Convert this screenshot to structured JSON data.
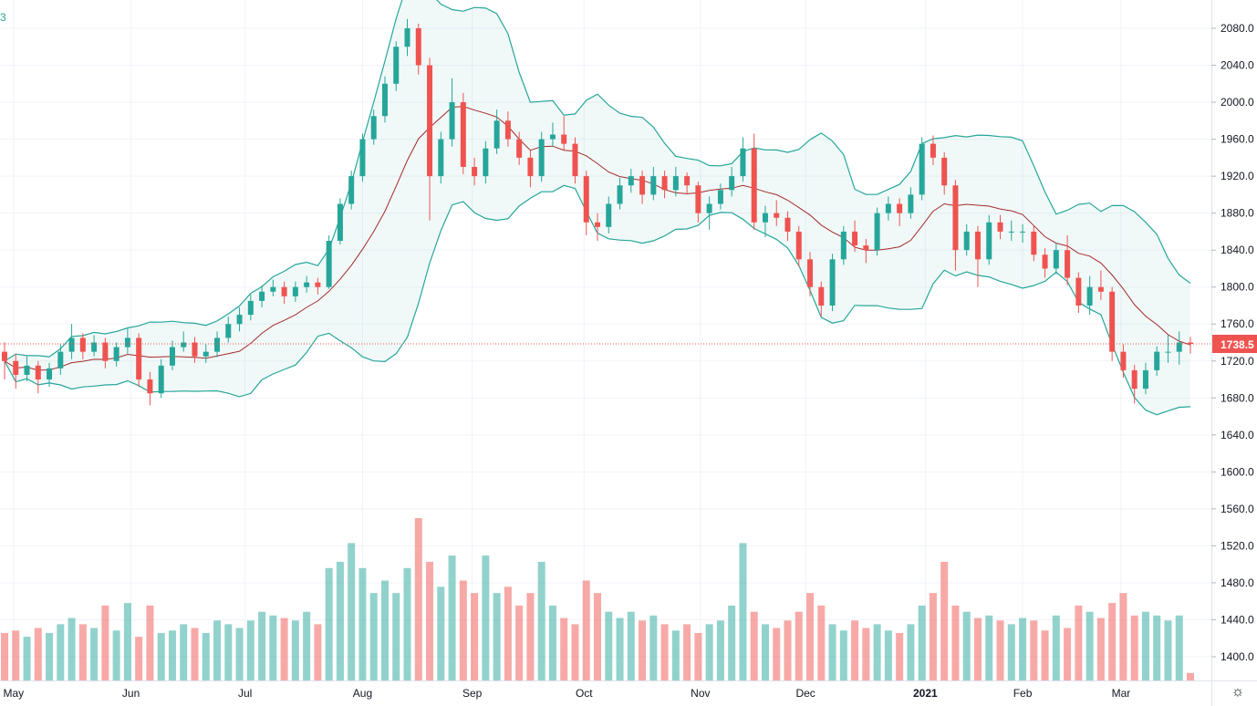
{
  "chart_data": {
    "type": "candlestick",
    "title": "",
    "legend_fragment": "3",
    "y_ticks": [
      "1400.0",
      "1440.0",
      "1480.0",
      "1520.0",
      "1560.0",
      "1600.0",
      "1640.0",
      "1680.0",
      "1720.0",
      "1760.0",
      "1800.0",
      "1840.0",
      "1880.0",
      "1920.0",
      "1960.0",
      "2000.0",
      "2040.0",
      "2080.0"
    ],
    "ylim": [
      1380,
      2100
    ],
    "x_ticks": [
      "May",
      "Jun",
      "Jul",
      "Aug",
      "Sep",
      "Oct",
      "Nov",
      "Dec",
      "2021",
      "Feb",
      "Mar"
    ],
    "last_price": "1738.5",
    "grid": true,
    "indicators": [
      "Bollinger Bands",
      "Volume"
    ],
    "colors": {
      "up": "#26a69a",
      "down": "#ef5350",
      "band": "#26a69a",
      "basis": "#a52a2a",
      "band_fill": "#26a69a",
      "grid": "#f0f3fa"
    },
    "candles": [
      [
        1730,
        1740,
        1700,
        1720
      ],
      [
        1720,
        1728,
        1690,
        1705
      ],
      [
        1705,
        1725,
        1698,
        1715
      ],
      [
        1715,
        1720,
        1685,
        1700
      ],
      [
        1700,
        1718,
        1692,
        1712
      ],
      [
        1712,
        1738,
        1705,
        1730
      ],
      [
        1730,
        1760,
        1722,
        1745
      ],
      [
        1745,
        1750,
        1722,
        1730
      ],
      [
        1730,
        1748,
        1725,
        1740
      ],
      [
        1740,
        1745,
        1712,
        1720
      ],
      [
        1720,
        1740,
        1714,
        1735
      ],
      [
        1735,
        1755,
        1728,
        1745
      ],
      [
        1745,
        1750,
        1692,
        1700
      ],
      [
        1700,
        1708,
        1672,
        1685
      ],
      [
        1685,
        1722,
        1680,
        1715
      ],
      [
        1715,
        1742,
        1710,
        1735
      ],
      [
        1735,
        1752,
        1730,
        1740
      ],
      [
        1740,
        1746,
        1718,
        1725
      ],
      [
        1725,
        1738,
        1718,
        1730
      ],
      [
        1730,
        1752,
        1724,
        1745
      ],
      [
        1745,
        1768,
        1740,
        1760
      ],
      [
        1760,
        1778,
        1752,
        1770
      ],
      [
        1770,
        1792,
        1764,
        1785
      ],
      [
        1785,
        1802,
        1778,
        1795
      ],
      [
        1795,
        1808,
        1790,
        1800
      ],
      [
        1800,
        1806,
        1782,
        1790
      ],
      [
        1790,
        1806,
        1784,
        1800
      ],
      [
        1800,
        1812,
        1794,
        1805
      ],
      [
        1805,
        1810,
        1792,
        1800
      ],
      [
        1800,
        1856,
        1798,
        1850
      ],
      [
        1850,
        1896,
        1846,
        1890
      ],
      [
        1890,
        1926,
        1884,
        1920
      ],
      [
        1920,
        1966,
        1914,
        1960
      ],
      [
        1960,
        1992,
        1954,
        1985
      ],
      [
        1985,
        2028,
        1978,
        2020
      ],
      [
        2020,
        2066,
        2012,
        2060
      ],
      [
        2060,
        2090,
        2050,
        2080
      ],
      [
        2080,
        2085,
        2030,
        2040
      ],
      [
        2040,
        2048,
        1872,
        1920
      ],
      [
        1920,
        1968,
        1912,
        1960
      ],
      [
        1960,
        2026,
        1952,
        2000
      ],
      [
        2000,
        2010,
        1922,
        1930
      ],
      [
        1930,
        1940,
        1910,
        1920
      ],
      [
        1920,
        1958,
        1912,
        1950
      ],
      [
        1950,
        1992,
        1944,
        1980
      ],
      [
        1980,
        1990,
        1952,
        1960
      ],
      [
        1960,
        1968,
        1932,
        1940
      ],
      [
        1940,
        1948,
        1908,
        1920
      ],
      [
        1920,
        1968,
        1914,
        1960
      ],
      [
        1960,
        1978,
        1952,
        1965
      ],
      [
        1965,
        1985,
        1948,
        1955
      ],
      [
        1955,
        1962,
        1912,
        1920
      ],
      [
        1920,
        1926,
        1856,
        1870
      ],
      [
        1870,
        1880,
        1850,
        1865
      ],
      [
        1865,
        1898,
        1858,
        1890
      ],
      [
        1890,
        1918,
        1884,
        1910
      ],
      [
        1910,
        1928,
        1902,
        1920
      ],
      [
        1920,
        1926,
        1890,
        1900
      ],
      [
        1900,
        1930,
        1894,
        1920
      ],
      [
        1920,
        1926,
        1896,
        1905
      ],
      [
        1905,
        1930,
        1898,
        1920
      ],
      [
        1920,
        1924,
        1900,
        1910
      ],
      [
        1910,
        1914,
        1870,
        1880
      ],
      [
        1880,
        1898,
        1862,
        1890
      ],
      [
        1890,
        1912,
        1884,
        1905
      ],
      [
        1905,
        1930,
        1898,
        1920
      ],
      [
        1920,
        1962,
        1914,
        1950
      ],
      [
        1950,
        1966,
        1862,
        1870
      ],
      [
        1870,
        1888,
        1854,
        1880
      ],
      [
        1880,
        1894,
        1866,
        1875
      ],
      [
        1875,
        1882,
        1850,
        1860
      ],
      [
        1860,
        1866,
        1822,
        1830
      ],
      [
        1830,
        1838,
        1790,
        1800
      ],
      [
        1800,
        1806,
        1768,
        1780
      ],
      [
        1780,
        1836,
        1774,
        1830
      ],
      [
        1830,
        1866,
        1824,
        1860
      ],
      [
        1860,
        1872,
        1838,
        1845
      ],
      [
        1845,
        1852,
        1826,
        1840
      ],
      [
        1840,
        1886,
        1834,
        1880
      ],
      [
        1880,
        1898,
        1872,
        1890
      ],
      [
        1890,
        1896,
        1866,
        1880
      ],
      [
        1880,
        1908,
        1874,
        1900
      ],
      [
        1900,
        1962,
        1894,
        1955
      ],
      [
        1955,
        1964,
        1932,
        1940
      ],
      [
        1940,
        1946,
        1900,
        1910
      ],
      [
        1910,
        1916,
        1818,
        1840
      ],
      [
        1840,
        1868,
        1834,
        1860
      ],
      [
        1860,
        1866,
        1800,
        1830
      ],
      [
        1830,
        1878,
        1824,
        1870
      ],
      [
        1870,
        1878,
        1852,
        1860
      ],
      [
        1860,
        1872,
        1850,
        1860
      ],
      [
        1860,
        1868,
        1848,
        1860
      ],
      [
        1860,
        1866,
        1828,
        1835
      ],
      [
        1835,
        1842,
        1810,
        1820
      ],
      [
        1820,
        1848,
        1814,
        1840
      ],
      [
        1840,
        1856,
        1802,
        1810
      ],
      [
        1810,
        1816,
        1772,
        1780
      ],
      [
        1780,
        1812,
        1770,
        1800
      ],
      [
        1800,
        1818,
        1786,
        1795
      ],
      [
        1795,
        1800,
        1720,
        1730
      ],
      [
        1730,
        1738,
        1702,
        1710
      ],
      [
        1710,
        1716,
        1674,
        1690
      ],
      [
        1690,
        1718,
        1684,
        1710
      ],
      [
        1710,
        1736,
        1704,
        1730
      ],
      [
        1730,
        1748,
        1718,
        1730
      ],
      [
        1730,
        1752,
        1716,
        1740
      ],
      [
        1740,
        1746,
        1728,
        1738.5
      ]
    ],
    "volume": [
      38,
      40,
      35,
      42,
      38,
      45,
      50,
      45,
      42,
      60,
      40,
      62,
      35,
      60,
      38,
      40,
      45,
      42,
      38,
      48,
      45,
      42,
      48,
      55,
      52,
      50,
      48,
      55,
      45,
      90,
      95,
      110,
      90,
      70,
      80,
      70,
      90,
      130,
      95,
      75,
      100,
      80,
      70,
      100,
      70,
      75,
      60,
      70,
      95,
      60,
      50,
      45,
      80,
      70,
      55,
      50,
      55,
      48,
      52,
      45,
      40,
      45,
      38,
      45,
      48,
      60,
      110,
      55,
      45,
      42,
      48,
      55,
      70,
      60,
      45,
      40,
      48,
      42,
      45,
      40,
      38,
      45,
      60,
      70,
      95,
      60,
      55,
      50,
      52,
      48,
      45,
      50,
      48,
      40,
      52,
      42,
      60,
      55,
      50,
      62,
      70,
      52,
      55,
      52,
      48,
      52,
      6
    ]
  }
}
